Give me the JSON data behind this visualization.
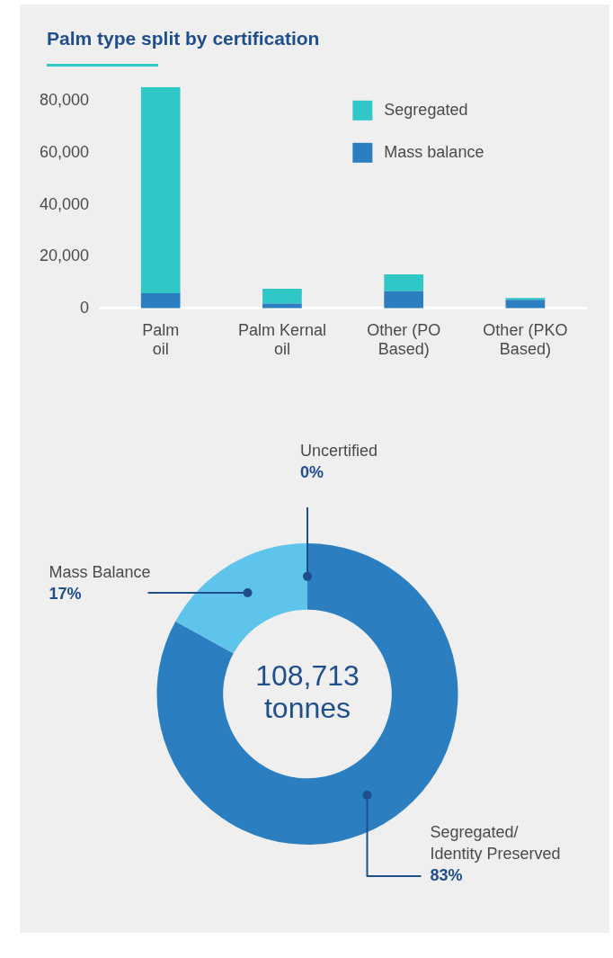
{
  "chart_data": [
    {
      "type": "bar",
      "title": "Palm type split by certification",
      "categories": [
        "Palm oil",
        "Palm Kernal oil",
        "Other (PO Based)",
        "Other (PKO Based)"
      ],
      "stacked": true,
      "ylim": [
        0,
        85400
      ],
      "yticks": [
        0,
        {
          "value": 20000,
          "label": "20,000"
        },
        {
          "value": 40000,
          "label": "40,000"
        },
        {
          "value": 60000,
          "label": "60,000"
        },
        {
          "value": 80000,
          "label": "80,000"
        }
      ],
      "grid": false,
      "legend": "top right",
      "series": [
        {
          "name": "Mass balance",
          "color": "#2b7fc1",
          "values": [
            5800,
            1800,
            6600,
            3300
          ]
        },
        {
          "name": "Segregated",
          "color": "#30c7c7",
          "values": [
            79600,
            5800,
            6500,
            700
          ]
        }
      ]
    },
    {
      "type": "donut",
      "categories": [
        "Segregated/ Identity Preserved",
        "Mass Balance",
        "Uncertified"
      ],
      "values": [
        83,
        17,
        0
      ],
      "colors": [
        "#2b7fc1",
        "#5ec4ec",
        "#1f4e8c"
      ],
      "value_labels": [
        "83%",
        "17%",
        "0%"
      ],
      "legend": false,
      "annotations": [
        "108,713 tonnes"
      ]
    }
  ]
}
